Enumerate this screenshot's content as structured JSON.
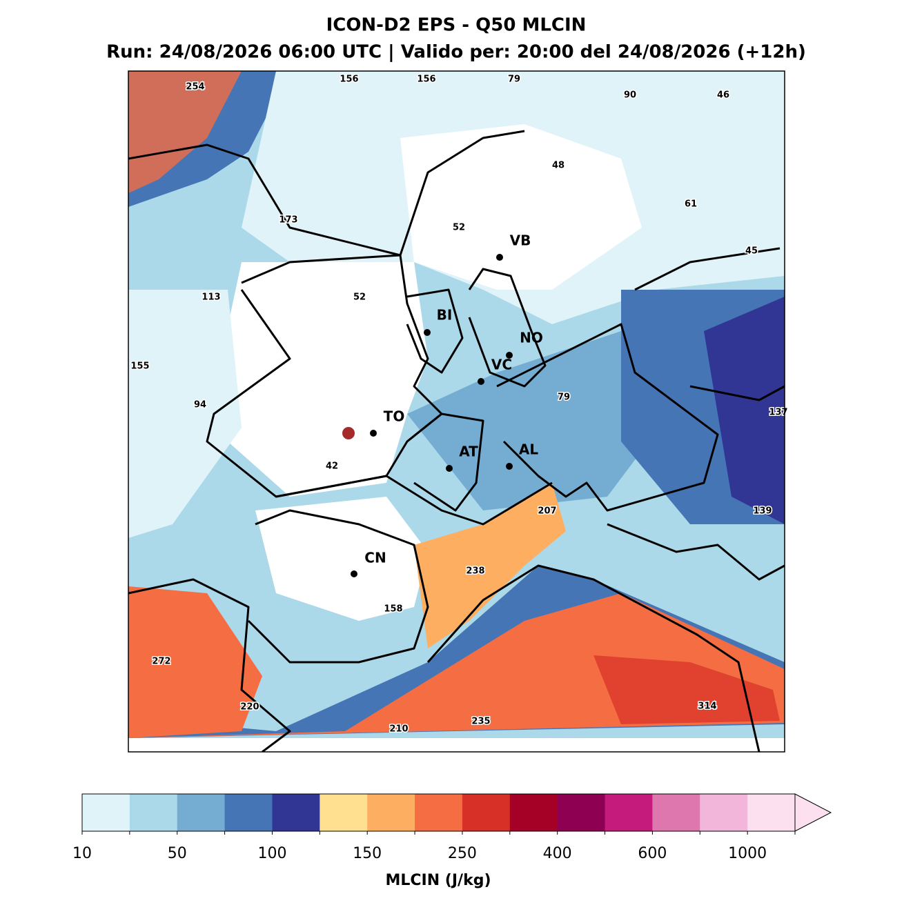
{
  "title": "ICON-D2 EPS - Q50 MLCIN",
  "subtitle": "Run: 24/08/2026 06:00 UTC | Valido per: 20:00 del 24/08/2026 (+12h)",
  "cities": [
    "VB",
    "BI",
    "NO",
    "VC",
    "TO",
    "AT",
    "AL",
    "CN"
  ],
  "map_labels": [
    254,
    156,
    156,
    79,
    90,
    46,
    48,
    61,
    173,
    52,
    52,
    45,
    113,
    155,
    94,
    79,
    137,
    42,
    207,
    139,
    238,
    158,
    272,
    220,
    210,
    235,
    314
  ],
  "colorbar": {
    "colors": [
      "#e0f3f8",
      "#abd9e9",
      "#74add1",
      "#4575b4",
      "#313695",
      "#fee090",
      "#fdae61",
      "#f46d43",
      "#d73027",
      "#a50026",
      "#8e0152",
      "#c51b7d",
      "#de77ae",
      "#f1b6da",
      "#fde0ef"
    ],
    "ticks": [
      10,
      50,
      100,
      150,
      250,
      400,
      600,
      1000
    ],
    "label": "MLCIN (J/kg)"
  }
}
